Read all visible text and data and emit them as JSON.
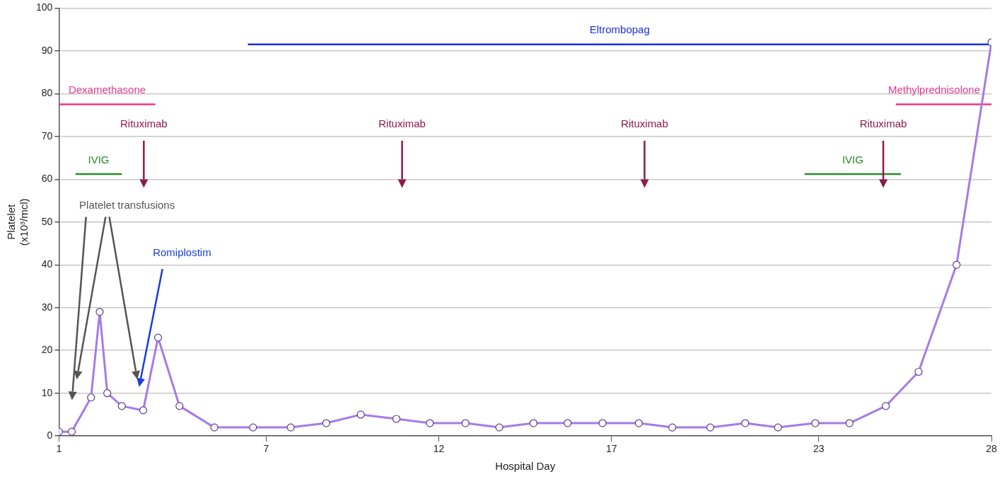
{
  "chart_data": {
    "type": "line",
    "xlabel": "Hospital Day",
    "ylabel": "Platelet\n(x10³/mcl)",
    "xlim": [
      1,
      28
    ],
    "xticks": [
      1,
      7,
      12,
      17,
      23,
      28
    ],
    "ylim": [
      0,
      100
    ],
    "yticks": [
      0,
      10,
      20,
      30,
      40,
      50,
      60,
      70,
      80,
      90,
      100
    ],
    "grid": "y",
    "legend": false,
    "marker": "circle",
    "line_style": "solid",
    "series": [
      {
        "color": "#a57be8",
        "x": [
          1,
          1.37,
          1.93,
          2.18,
          2.4,
          2.82,
          3.44,
          3.87,
          4.49,
          5.5,
          6.62,
          7.71,
          8.74,
          9.74,
          10.77,
          11.74,
          12.77,
          13.75,
          14.74,
          15.73,
          16.74,
          17.79,
          18.76,
          19.86,
          20.87,
          21.82,
          22.9,
          23.89,
          24.94,
          25.89,
          26.99,
          28
        ],
        "values": [
          1,
          1,
          9,
          29,
          10,
          7,
          6,
          23,
          7,
          2,
          2,
          2,
          3,
          5,
          4,
          3,
          3,
          2,
          3,
          3,
          3,
          3,
          2,
          2,
          3,
          2,
          3,
          3,
          7,
          15,
          40,
          92
        ]
      },
      {
        "type": "line",
        "name": "Eltrombopag",
        "color": "#1a2ee0",
        "marker": "none",
        "x": [
          6.47,
          28
        ],
        "values": [
          91.5,
          91.5
        ]
      },
      {
        "type": "line",
        "name": "Dexamethasone",
        "color": "#e8388a",
        "marker": "none",
        "x": [
          1,
          3.79
        ],
        "values": [
          77.5,
          77.5
        ]
      },
      {
        "type": "line",
        "name": "Methylprednisolone",
        "color": "#e8388a",
        "marker": "none",
        "x": [
          25.23,
          28
        ],
        "values": [
          77.5,
          77.5
        ]
      },
      {
        "type": "line",
        "name": "IVIG",
        "color": "#2a8a2a",
        "marker": "none",
        "x": [
          1.48,
          2.82
        ],
        "values": [
          61.2,
          61.2
        ]
      },
      {
        "type": "line",
        "name": "IVIG",
        "color": "#2a8a2a",
        "marker": "none",
        "x": [
          22.59,
          25.38
        ],
        "values": [
          61.2,
          61.2
        ]
      }
    ],
    "annotations": [
      "Rituximab",
      "Rituximab",
      "Rituximab",
      "Rituximab",
      "Romiplostim",
      "Platelet transfusions"
    ]
  }
}
